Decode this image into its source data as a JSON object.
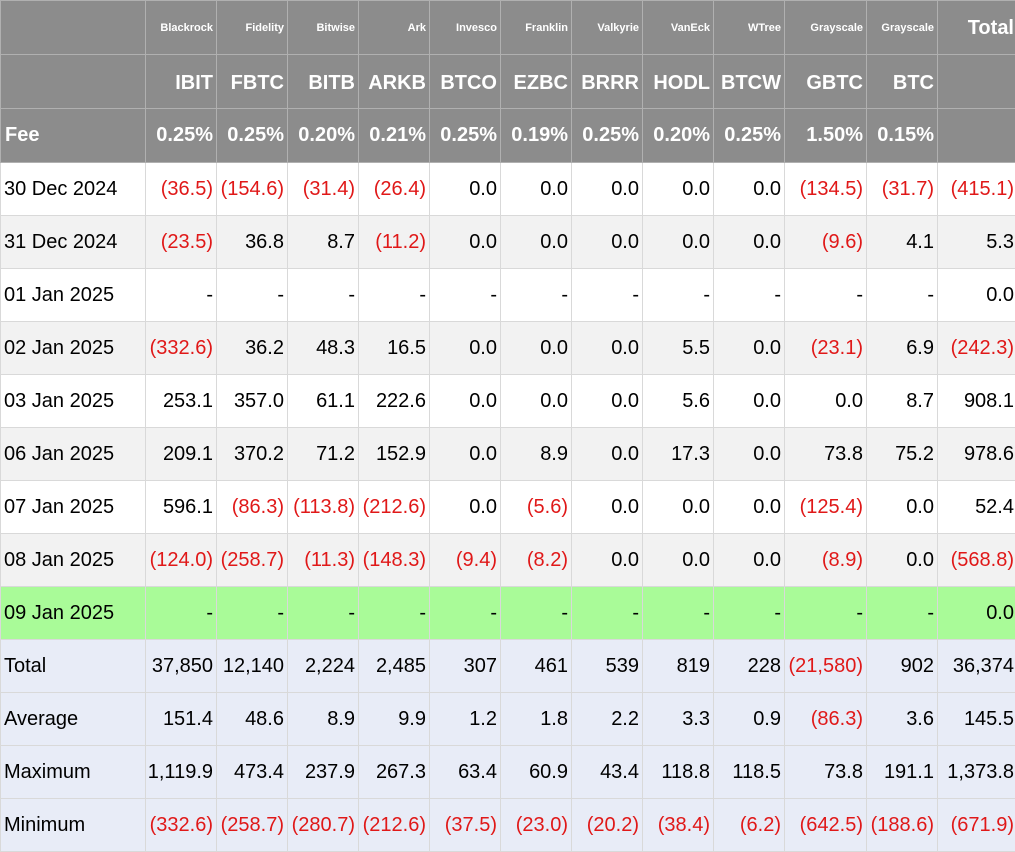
{
  "columns": [
    {
      "issuer": "Blackrock",
      "ticker": "IBIT",
      "fee": "0.25%"
    },
    {
      "issuer": "Fidelity",
      "ticker": "FBTC",
      "fee": "0.25%"
    },
    {
      "issuer": "Bitwise",
      "ticker": "BITB",
      "fee": "0.20%"
    },
    {
      "issuer": "Ark",
      "ticker": "ARKB",
      "fee": "0.21%"
    },
    {
      "issuer": "Invesco",
      "ticker": "BTCO",
      "fee": "0.25%"
    },
    {
      "issuer": "Franklin",
      "ticker": "EZBC",
      "fee": "0.19%"
    },
    {
      "issuer": "Valkyrie",
      "ticker": "BRRR",
      "fee": "0.25%"
    },
    {
      "issuer": "VanEck",
      "ticker": "HODL",
      "fee": "0.20%"
    },
    {
      "issuer": "WTree",
      "ticker": "BTCW",
      "fee": "0.25%"
    },
    {
      "issuer": "Grayscale",
      "ticker": "GBTC",
      "fee": "1.50%"
    },
    {
      "issuer": "Grayscale",
      "ticker": "BTC",
      "fee": "0.15%"
    }
  ],
  "total_header": "Total",
  "fee_label": "Fee",
  "rows": [
    {
      "date": "30 Dec 2024",
      "values": [
        "(36.5)",
        "(154.6)",
        "(31.4)",
        "(26.4)",
        "0.0",
        "0.0",
        "0.0",
        "0.0",
        "0.0",
        "(134.5)",
        "(31.7)"
      ],
      "total": "(415.1)"
    },
    {
      "date": "31 Dec 2024",
      "values": [
        "(23.5)",
        "36.8",
        "8.7",
        "(11.2)",
        "0.0",
        "0.0",
        "0.0",
        "0.0",
        "0.0",
        "(9.6)",
        "4.1"
      ],
      "total": "5.3"
    },
    {
      "date": "01 Jan 2025",
      "values": [
        "-",
        "-",
        "-",
        "-",
        "-",
        "-",
        "-",
        "-",
        "-",
        "-",
        "-"
      ],
      "total": "0.0"
    },
    {
      "date": "02 Jan 2025",
      "values": [
        "(332.6)",
        "36.2",
        "48.3",
        "16.5",
        "0.0",
        "0.0",
        "0.0",
        "5.5",
        "0.0",
        "(23.1)",
        "6.9"
      ],
      "total": "(242.3)"
    },
    {
      "date": "03 Jan 2025",
      "values": [
        "253.1",
        "357.0",
        "61.1",
        "222.6",
        "0.0",
        "0.0",
        "0.0",
        "5.6",
        "0.0",
        "0.0",
        "8.7"
      ],
      "total": "908.1"
    },
    {
      "date": "06 Jan 2025",
      "values": [
        "209.1",
        "370.2",
        "71.2",
        "152.9",
        "0.0",
        "8.9",
        "0.0",
        "17.3",
        "0.0",
        "73.8",
        "75.2"
      ],
      "total": "978.6"
    },
    {
      "date": "07 Jan 2025",
      "values": [
        "596.1",
        "(86.3)",
        "(113.8)",
        "(212.6)",
        "0.0",
        "(5.6)",
        "0.0",
        "0.0",
        "0.0",
        "(125.4)",
        "0.0"
      ],
      "total": "52.4"
    },
    {
      "date": "08 Jan 2025",
      "values": [
        "(124.0)",
        "(258.7)",
        "(11.3)",
        "(148.3)",
        "(9.4)",
        "(8.2)",
        "0.0",
        "0.0",
        "0.0",
        "(8.9)",
        "0.0"
      ],
      "total": "(568.8)"
    },
    {
      "date": "09 Jan 2025",
      "values": [
        "-",
        "-",
        "-",
        "-",
        "-",
        "-",
        "-",
        "-",
        "-",
        "-",
        "-"
      ],
      "total": "0.0",
      "highlight": true
    }
  ],
  "summary": [
    {
      "label": "Total",
      "values": [
        "37,850",
        "12,140",
        "2,224",
        "2,485",
        "307",
        "461",
        "539",
        "819",
        "228",
        "(21,580)",
        "902"
      ],
      "total": "36,374"
    },
    {
      "label": "Average",
      "values": [
        "151.4",
        "48.6",
        "8.9",
        "9.9",
        "1.2",
        "1.8",
        "2.2",
        "3.3",
        "0.9",
        "(86.3)",
        "3.6"
      ],
      "total": "145.5"
    },
    {
      "label": "Maximum",
      "values": [
        "1,119.9",
        "473.4",
        "237.9",
        "267.3",
        "63.4",
        "60.9",
        "43.4",
        "118.8",
        "118.5",
        "73.8",
        "191.1"
      ],
      "total": "1,373.8"
    },
    {
      "label": "Minimum",
      "values": [
        "(332.6)",
        "(258.7)",
        "(280.7)",
        "(212.6)",
        "(37.5)",
        "(23.0)",
        "(20.2)",
        "(38.4)",
        "(6.2)",
        "(642.5)",
        "(188.6)"
      ],
      "total": "(671.9)"
    }
  ],
  "colors": {
    "header_bg": "#8c8c8c",
    "negative": "#e01818",
    "highlight_row": "#a9fb98",
    "summary_bg": "#e8ecf7",
    "alt_row": "#f2f2f2"
  }
}
